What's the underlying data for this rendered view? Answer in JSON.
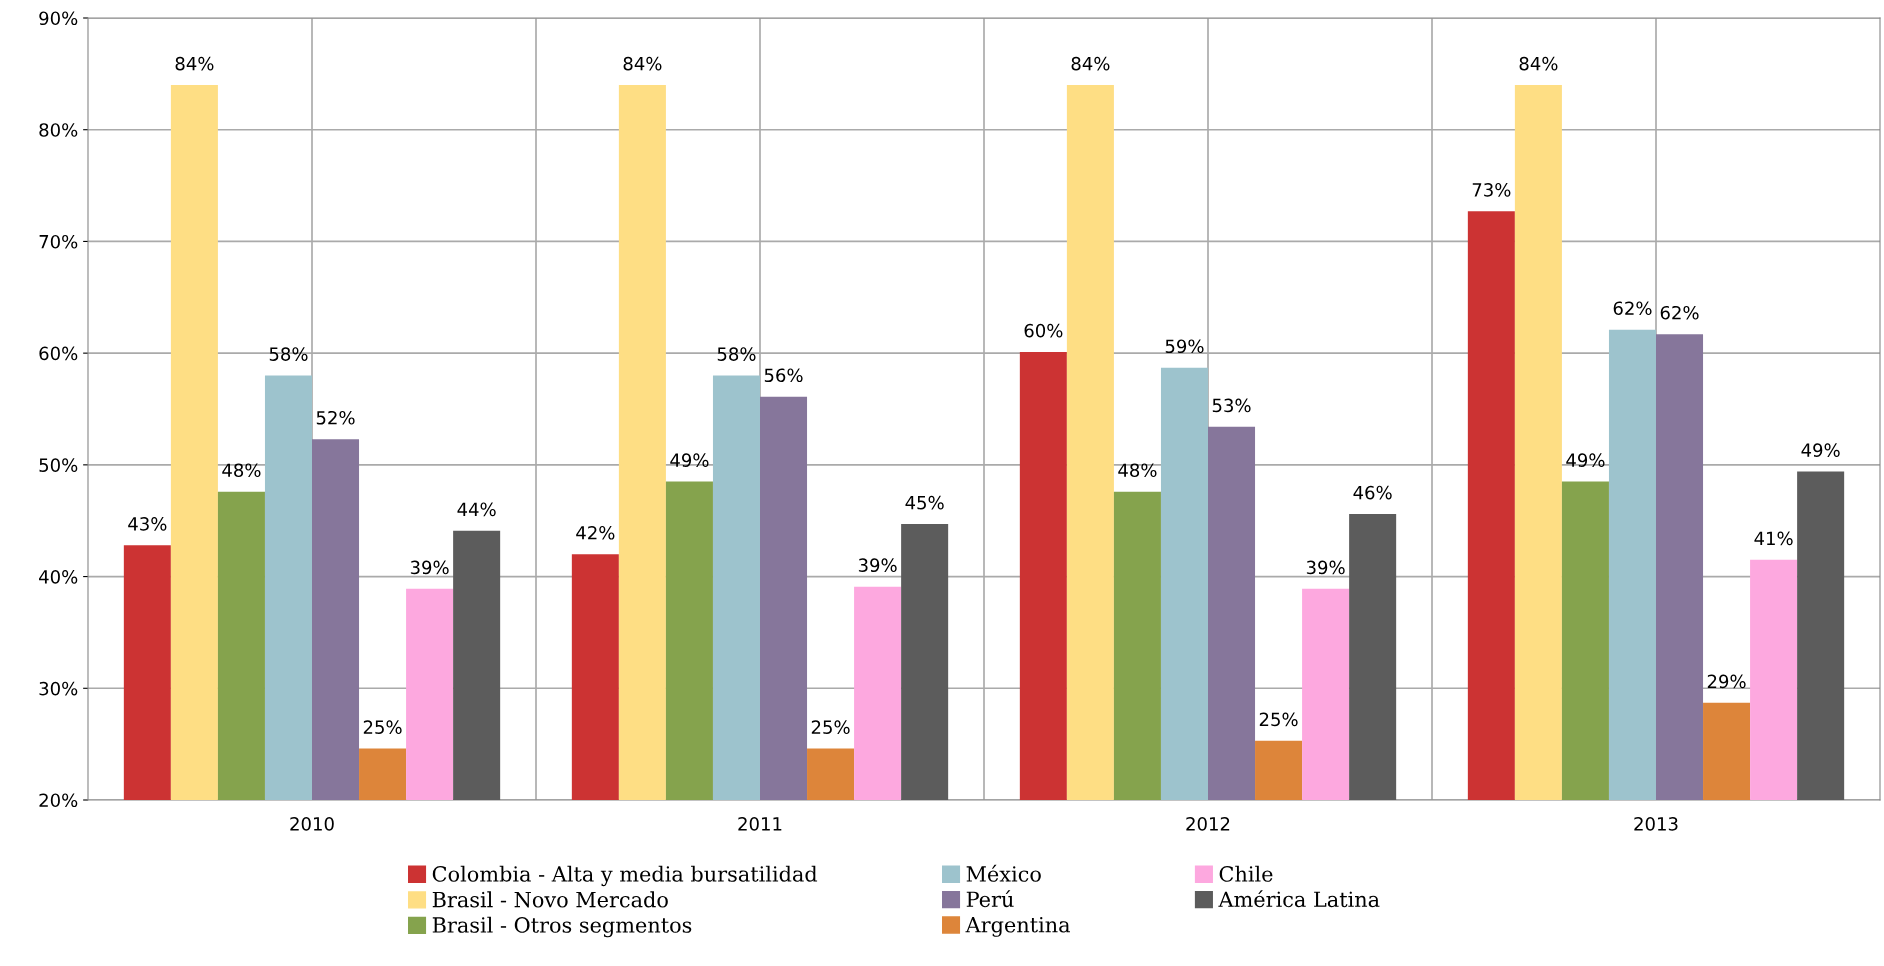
{
  "chart_data": {
    "type": "bar",
    "categories": [
      "2010",
      "2011",
      "2012",
      "2013"
    ],
    "series": [
      {
        "name": "Colombia - Alta y media bursatilidad",
        "color": "#cc3333",
        "values": [
          42.8,
          42.0,
          60.1,
          72.7
        ],
        "value_labels": [
          "43%",
          "42%",
          "60%",
          "73%"
        ]
      },
      {
        "name": "Brasil - Novo Mercado",
        "color": "#fede84",
        "values": [
          84.0,
          84.0,
          84.0,
          84.0
        ],
        "value_labels": [
          "84%",
          "84%",
          "84%",
          "84%"
        ]
      },
      {
        "name": "Brasil - Otros segmentos",
        "color": "#85a34d",
        "values": [
          47.6,
          48.5,
          47.6,
          48.5
        ],
        "value_labels": [
          "48%",
          "49%",
          "48%",
          "49%"
        ]
      },
      {
        "name": "México",
        "color": "#9dc3cd",
        "values": [
          58.0,
          58.0,
          58.7,
          62.1
        ],
        "value_labels": [
          "58%",
          "58%",
          "59%",
          "62%"
        ]
      },
      {
        "name": "Perú",
        "color": "#86769b",
        "values": [
          52.3,
          56.1,
          53.4,
          61.7
        ],
        "value_labels": [
          "52%",
          "56%",
          "53%",
          "62%"
        ]
      },
      {
        "name": "Argentina",
        "color": "#dd853a",
        "values": [
          24.6,
          24.6,
          25.3,
          28.7
        ],
        "value_labels": [
          "25%",
          "25%",
          "25%",
          "29%"
        ]
      },
      {
        "name": "Chile",
        "color": "#fda8df",
        "values": [
          38.9,
          39.1,
          38.9,
          41.5
        ],
        "value_labels": [
          "39%",
          "39%",
          "39%",
          "41%"
        ]
      },
      {
        "name": "América Latina",
        "color": "#5c5c5c",
        "values": [
          44.1,
          44.7,
          45.6,
          49.4
        ],
        "value_labels": [
          "44%",
          "45%",
          "46%",
          "49%"
        ]
      }
    ],
    "ylim": [
      20,
      90
    ],
    "yticks": [
      {
        "value": 20,
        "label": "20%"
      },
      {
        "value": 30,
        "label": "30%"
      },
      {
        "value": 40,
        "label": "40%"
      },
      {
        "value": 50,
        "label": "50%"
      },
      {
        "value": 60,
        "label": "60%"
      },
      {
        "value": 70,
        "label": "70%"
      },
      {
        "value": 80,
        "label": "80%"
      },
      {
        "value": 90,
        "label": "90%"
      }
    ],
    "grid": true,
    "legend": "bottom"
  }
}
